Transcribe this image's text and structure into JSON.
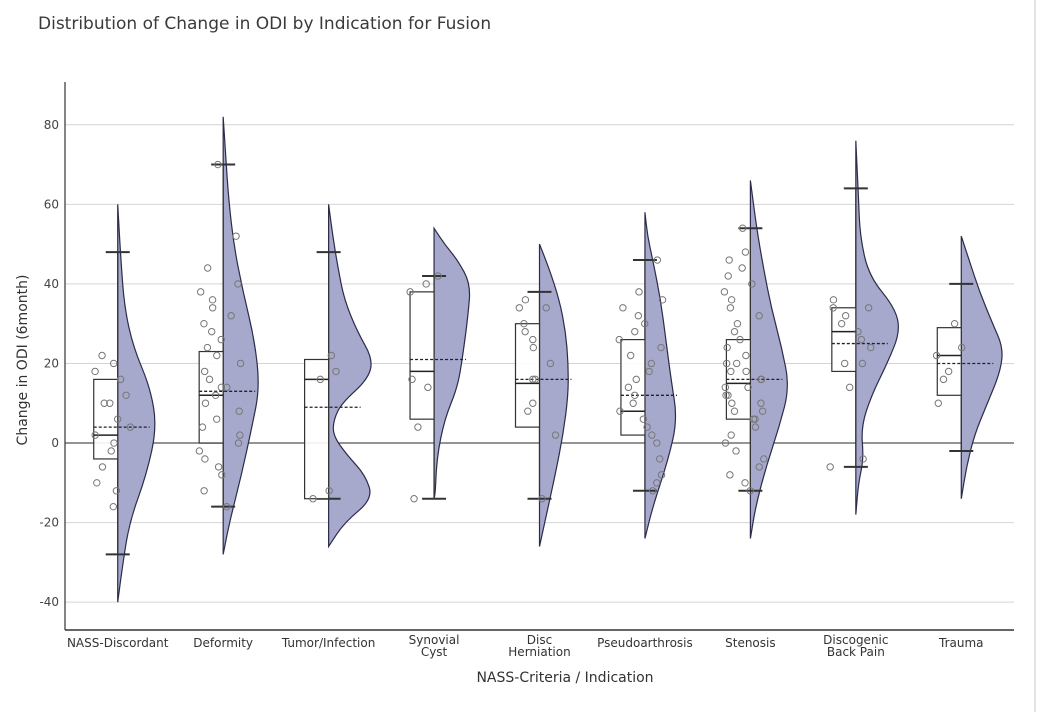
{
  "chart_data": {
    "type": "raincloud",
    "title": "Distribution of Change in ODI by Indication for Fusion",
    "xlabel": "NASS-Criteria / Indication",
    "ylabel": "Change in ODI (6month)",
    "ylim": [
      -47,
      90
    ],
    "yticks": [
      -40,
      -20,
      0,
      20,
      40,
      60,
      80
    ],
    "grid": true,
    "fill_color": "#a6a9cc",
    "categories": [
      {
        "label": "NASS-Discordant",
        "min": -28,
        "q1": -4,
        "median": 2,
        "q3": 16,
        "max": 48,
        "mean": 4,
        "density": [
          [
            -40,
            0
          ],
          [
            -32,
            0.08
          ],
          [
            -20,
            0.22
          ],
          [
            -8,
            0.55
          ],
          [
            4,
            0.75
          ],
          [
            14,
            0.62
          ],
          [
            24,
            0.3
          ],
          [
            34,
            0.13
          ],
          [
            46,
            0.06
          ],
          [
            60,
            0
          ]
        ],
        "points": [
          -16,
          -12,
          -10,
          -6,
          -2,
          0,
          2,
          4,
          6,
          10,
          10,
          12,
          16,
          18,
          20,
          22
        ]
      },
      {
        "label": "Deformity",
        "min": -16,
        "q1": 0,
        "median": 12,
        "q3": 23,
        "max": 70,
        "mean": 13,
        "density": [
          [
            -28,
            0
          ],
          [
            -20,
            0.12
          ],
          [
            -8,
            0.35
          ],
          [
            4,
            0.55
          ],
          [
            14,
            0.7
          ],
          [
            26,
            0.6
          ],
          [
            38,
            0.38
          ],
          [
            50,
            0.2
          ],
          [
            62,
            0.1
          ],
          [
            72,
            0.05
          ],
          [
            82,
            0
          ]
        ],
        "points": [
          -16,
          -12,
          -8,
          -6,
          -4,
          -2,
          0,
          2,
          4,
          6,
          8,
          10,
          12,
          14,
          14,
          16,
          18,
          20,
          22,
          24,
          26,
          28,
          30,
          32,
          34,
          36,
          38,
          40,
          44,
          52,
          70
        ]
      },
      {
        "label": "Tumor/Infection",
        "min": -14,
        "q1": -14,
        "median": 16,
        "q3": 21,
        "max": 48,
        "mean": 9,
        "density": [
          [
            -26,
            0
          ],
          [
            -20,
            0.3
          ],
          [
            -14,
            0.85
          ],
          [
            -8,
            0.7
          ],
          [
            -3,
            0.35
          ],
          [
            2,
            0.08
          ],
          [
            6,
            0.1
          ],
          [
            10,
            0.25
          ],
          [
            16,
            0.75
          ],
          [
            21,
            0.85
          ],
          [
            28,
            0.55
          ],
          [
            36,
            0.3
          ],
          [
            44,
            0.18
          ],
          [
            52,
            0.08
          ],
          [
            60,
            0
          ]
        ],
        "points": [
          -14,
          -12,
          16,
          18,
          22
        ]
      },
      {
        "label": "Synovial Cyst",
        "min": -14,
        "q1": 6,
        "median": 18,
        "q3": 38,
        "max": 42,
        "mean": 21,
        "density": [
          [
            -14,
            0.02
          ],
          [
            -4,
            0.05
          ],
          [
            6,
            0.2
          ],
          [
            14,
            0.45
          ],
          [
            22,
            0.55
          ],
          [
            32,
            0.65
          ],
          [
            40,
            0.7
          ],
          [
            46,
            0.45
          ],
          [
            50,
            0.2
          ],
          [
            54,
            0
          ]
        ],
        "points": [
          -14,
          4,
          14,
          16,
          38,
          40,
          42
        ]
      },
      {
        "label": "Disc Herniation",
        "min": -14,
        "q1": 4,
        "median": 15,
        "q3": 30,
        "max": 38,
        "mean": 16,
        "density": [
          [
            -26,
            0
          ],
          [
            -20,
            0.1
          ],
          [
            -8,
            0.3
          ],
          [
            2,
            0.45
          ],
          [
            12,
            0.55
          ],
          [
            20,
            0.55
          ],
          [
            28,
            0.5
          ],
          [
            36,
            0.38
          ],
          [
            44,
            0.18
          ],
          [
            50,
            0
          ]
        ],
        "points": [
          -14,
          2,
          8,
          10,
          16,
          16,
          20,
          24,
          26,
          28,
          30,
          34,
          34,
          36
        ]
      },
      {
        "label": "Pseudoarthrosis",
        "min": -12,
        "q1": 2,
        "median": 8,
        "q3": 26,
        "max": 46,
        "mean": 12,
        "density": [
          [
            -24,
            0
          ],
          [
            -16,
            0.15
          ],
          [
            -4,
            0.45
          ],
          [
            6,
            0.62
          ],
          [
            16,
            0.5
          ],
          [
            26,
            0.4
          ],
          [
            36,
            0.3
          ],
          [
            46,
            0.15
          ],
          [
            52,
            0.05
          ],
          [
            58,
            0
          ]
        ],
        "points": [
          -12,
          -10,
          -8,
          -4,
          0,
          2,
          4,
          6,
          8,
          10,
          12,
          14,
          16,
          18,
          20,
          22,
          24,
          26,
          28,
          30,
          32,
          34,
          36,
          38,
          46
        ]
      },
      {
        "label": "Stenosis",
        "min": -12,
        "q1": 6,
        "median": 15,
        "q3": 26,
        "max": 54,
        "mean": 16,
        "density": [
          [
            -24,
            0
          ],
          [
            -16,
            0.1
          ],
          [
            -6,
            0.3
          ],
          [
            4,
            0.55
          ],
          [
            14,
            0.75
          ],
          [
            24,
            0.6
          ],
          [
            34,
            0.4
          ],
          [
            44,
            0.25
          ],
          [
            54,
            0.12
          ],
          [
            66,
            0
          ]
        ],
        "points": [
          -12,
          -10,
          -8,
          -6,
          -4,
          -2,
          0,
          2,
          4,
          6,
          6,
          8,
          8,
          10,
          10,
          12,
          12,
          14,
          14,
          16,
          16,
          18,
          18,
          20,
          20,
          22,
          24,
          26,
          28,
          30,
          32,
          34,
          36,
          38,
          40,
          42,
          44,
          46,
          48,
          54
        ]
      },
      {
        "label": "Discogenic Back Pain",
        "min": -6,
        "q1": 18,
        "median": 28,
        "q3": 34,
        "max": 64,
        "mean": 25,
        "density": [
          [
            -18,
            0
          ],
          [
            -10,
            0.05
          ],
          [
            -4,
            0.15
          ],
          [
            4,
            0.1
          ],
          [
            12,
            0.3
          ],
          [
            20,
            0.6
          ],
          [
            28,
            0.85
          ],
          [
            34,
            0.75
          ],
          [
            42,
            0.25
          ],
          [
            52,
            0.08
          ],
          [
            62,
            0.05
          ],
          [
            70,
            0.02
          ],
          [
            76,
            0
          ]
        ],
        "points": [
          -6,
          -4,
          14,
          20,
          20,
          24,
          26,
          28,
          30,
          32,
          34,
          34,
          36
        ]
      },
      {
        "label": "Trauma",
        "min": -2,
        "q1": 12,
        "median": 22,
        "q3": 29,
        "max": 40,
        "mean": 20,
        "density": [
          [
            -14,
            0
          ],
          [
            -6,
            0.1
          ],
          [
            2,
            0.25
          ],
          [
            10,
            0.5
          ],
          [
            18,
            0.75
          ],
          [
            24,
            0.8
          ],
          [
            30,
            0.6
          ],
          [
            38,
            0.35
          ],
          [
            46,
            0.15
          ],
          [
            52,
            0
          ]
        ],
        "points": [
          10,
          16,
          18,
          22,
          24,
          30
        ]
      }
    ]
  }
}
